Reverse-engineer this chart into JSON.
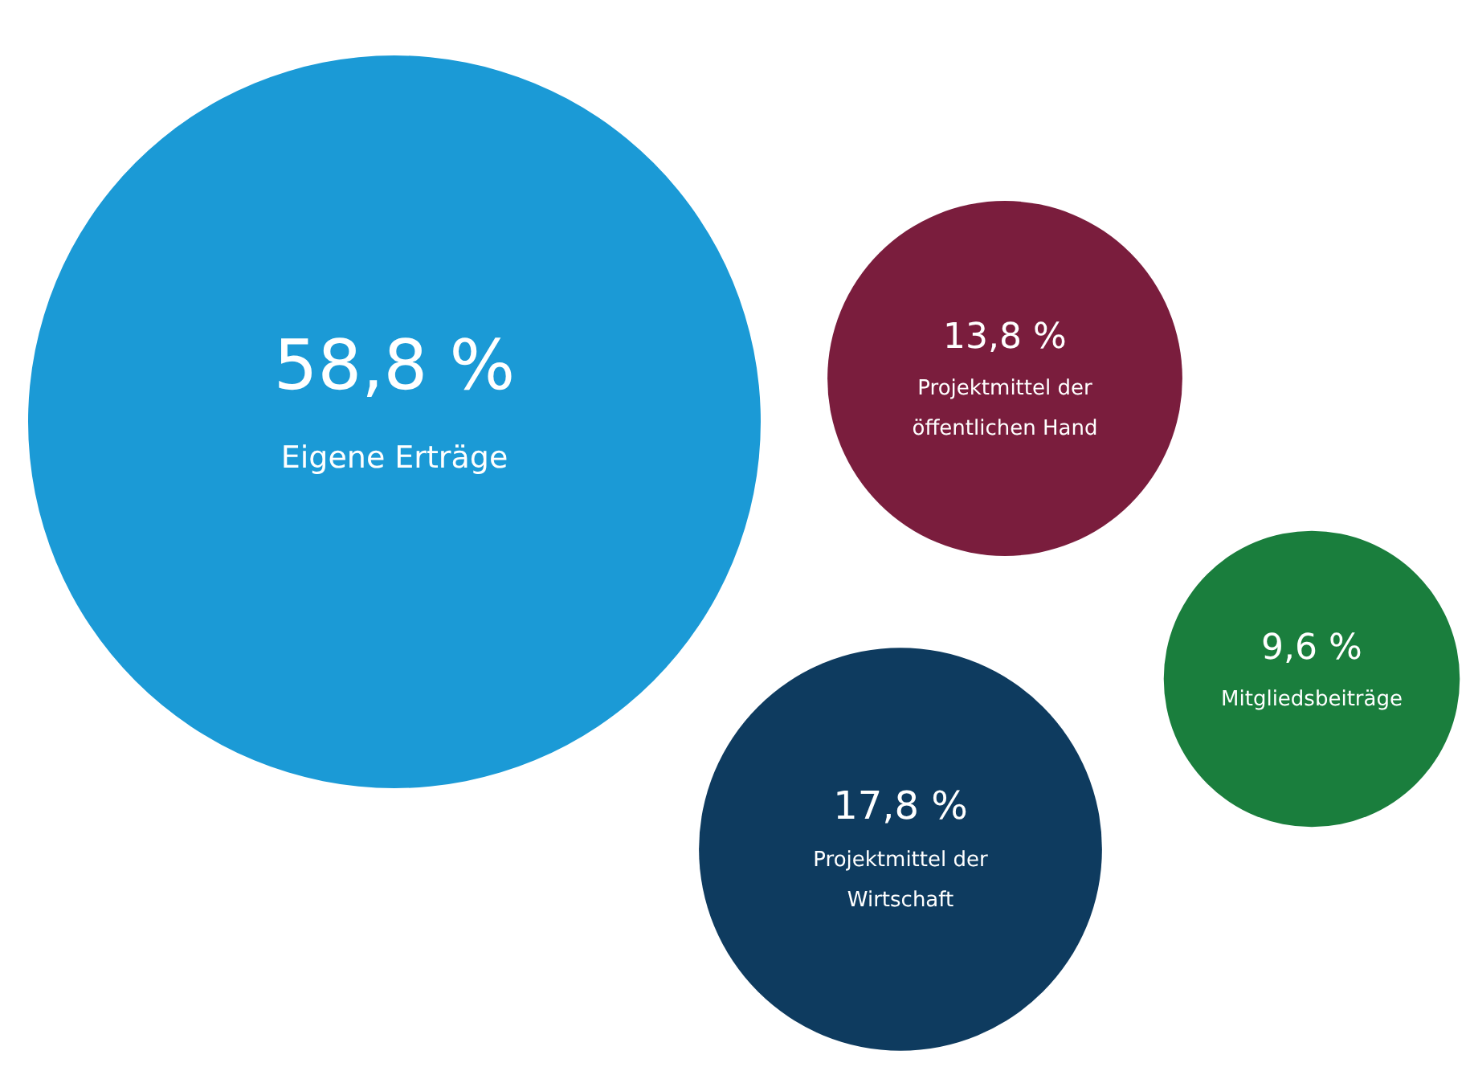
{
  "chart_data": {
    "type": "other",
    "categories": [
      "Eigene Erträge",
      "Projektmittel der öffentlichen Hand",
      "Mitgliedsbeiträge",
      "Projektmittel der Wirtschaft"
    ],
    "values": [
      58.8,
      13.8,
      9.6,
      17.8
    ],
    "value_labels": [
      "58,8 %",
      "13,8 %",
      "9,6 %",
      "17,8 %"
    ],
    "colors": [
      "#1b9ad6",
      "#7a1d3d",
      "#1a7e3d",
      "#0e3b5f"
    ],
    "data_labels": true
  }
}
